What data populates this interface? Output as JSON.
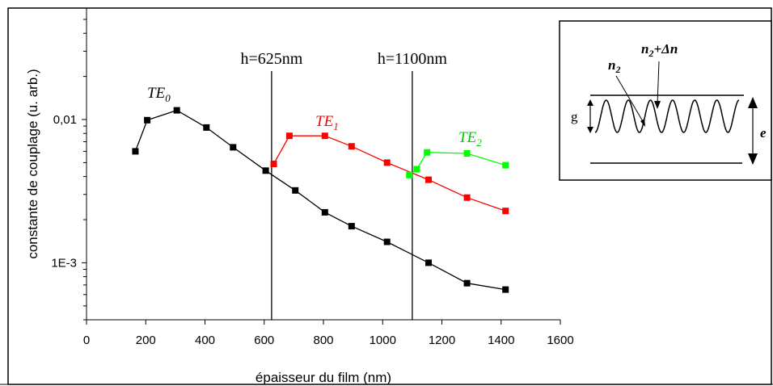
{
  "chart_data": {
    "type": "line",
    "yscale": "log",
    "xlabel": "épaisseur du film (nm)",
    "ylabel": "constante de couplage (u. arb.)",
    "xlim": [
      0,
      1600
    ],
    "ylim": [
      0.0004,
      0.06
    ],
    "xticks": [
      "0",
      "200",
      "400",
      "600",
      "800",
      "1000",
      "1200",
      "1400",
      "1600"
    ],
    "yticks": [
      {
        "value": 0.01,
        "label": "0,01"
      },
      {
        "value": 0.001,
        "label": "1E-3"
      }
    ],
    "series": [
      {
        "name": "TE0",
        "label_main": "TE",
        "label_sub": "0",
        "color": "#000000",
        "x": [
          165,
          205,
          305,
          405,
          495,
          605,
          705,
          805,
          895,
          1015,
          1155,
          1285,
          1415
        ],
        "y": [
          0.006,
          0.0099,
          0.0116,
          0.0088,
          0.0064,
          0.0044,
          0.0032,
          0.00225,
          0.0018,
          0.0014,
          0.001,
          0.00072,
          0.00065
        ]
      },
      {
        "name": "TE1",
        "label_main": "TE",
        "label_sub": "1",
        "color": "#ff0000",
        "x": [
          632,
          685,
          805,
          895,
          1015,
          1155,
          1285,
          1415
        ],
        "y": [
          0.0049,
          0.0077,
          0.0077,
          0.0065,
          0.005,
          0.0038,
          0.00285,
          0.0023
        ]
      },
      {
        "name": "TE2",
        "label_main": "TE",
        "label_sub": "2",
        "color": "#00ff00",
        "x": [
          1090,
          1115,
          1150,
          1285,
          1415
        ],
        "y": [
          0.0041,
          0.0045,
          0.0059,
          0.0058,
          0.0048
        ]
      }
    ],
    "annotations": [
      {
        "text": "h=625nm",
        "x": 625
      },
      {
        "text": "h=1100nm",
        "x": 1100
      }
    ]
  },
  "inset": {
    "n2_main": "n",
    "n2_sub": "2",
    "n2dn_main": "n",
    "n2dn_sub": "2",
    "n2dn_rest": "+Δn",
    "g_label": "g",
    "e_label": "e"
  }
}
